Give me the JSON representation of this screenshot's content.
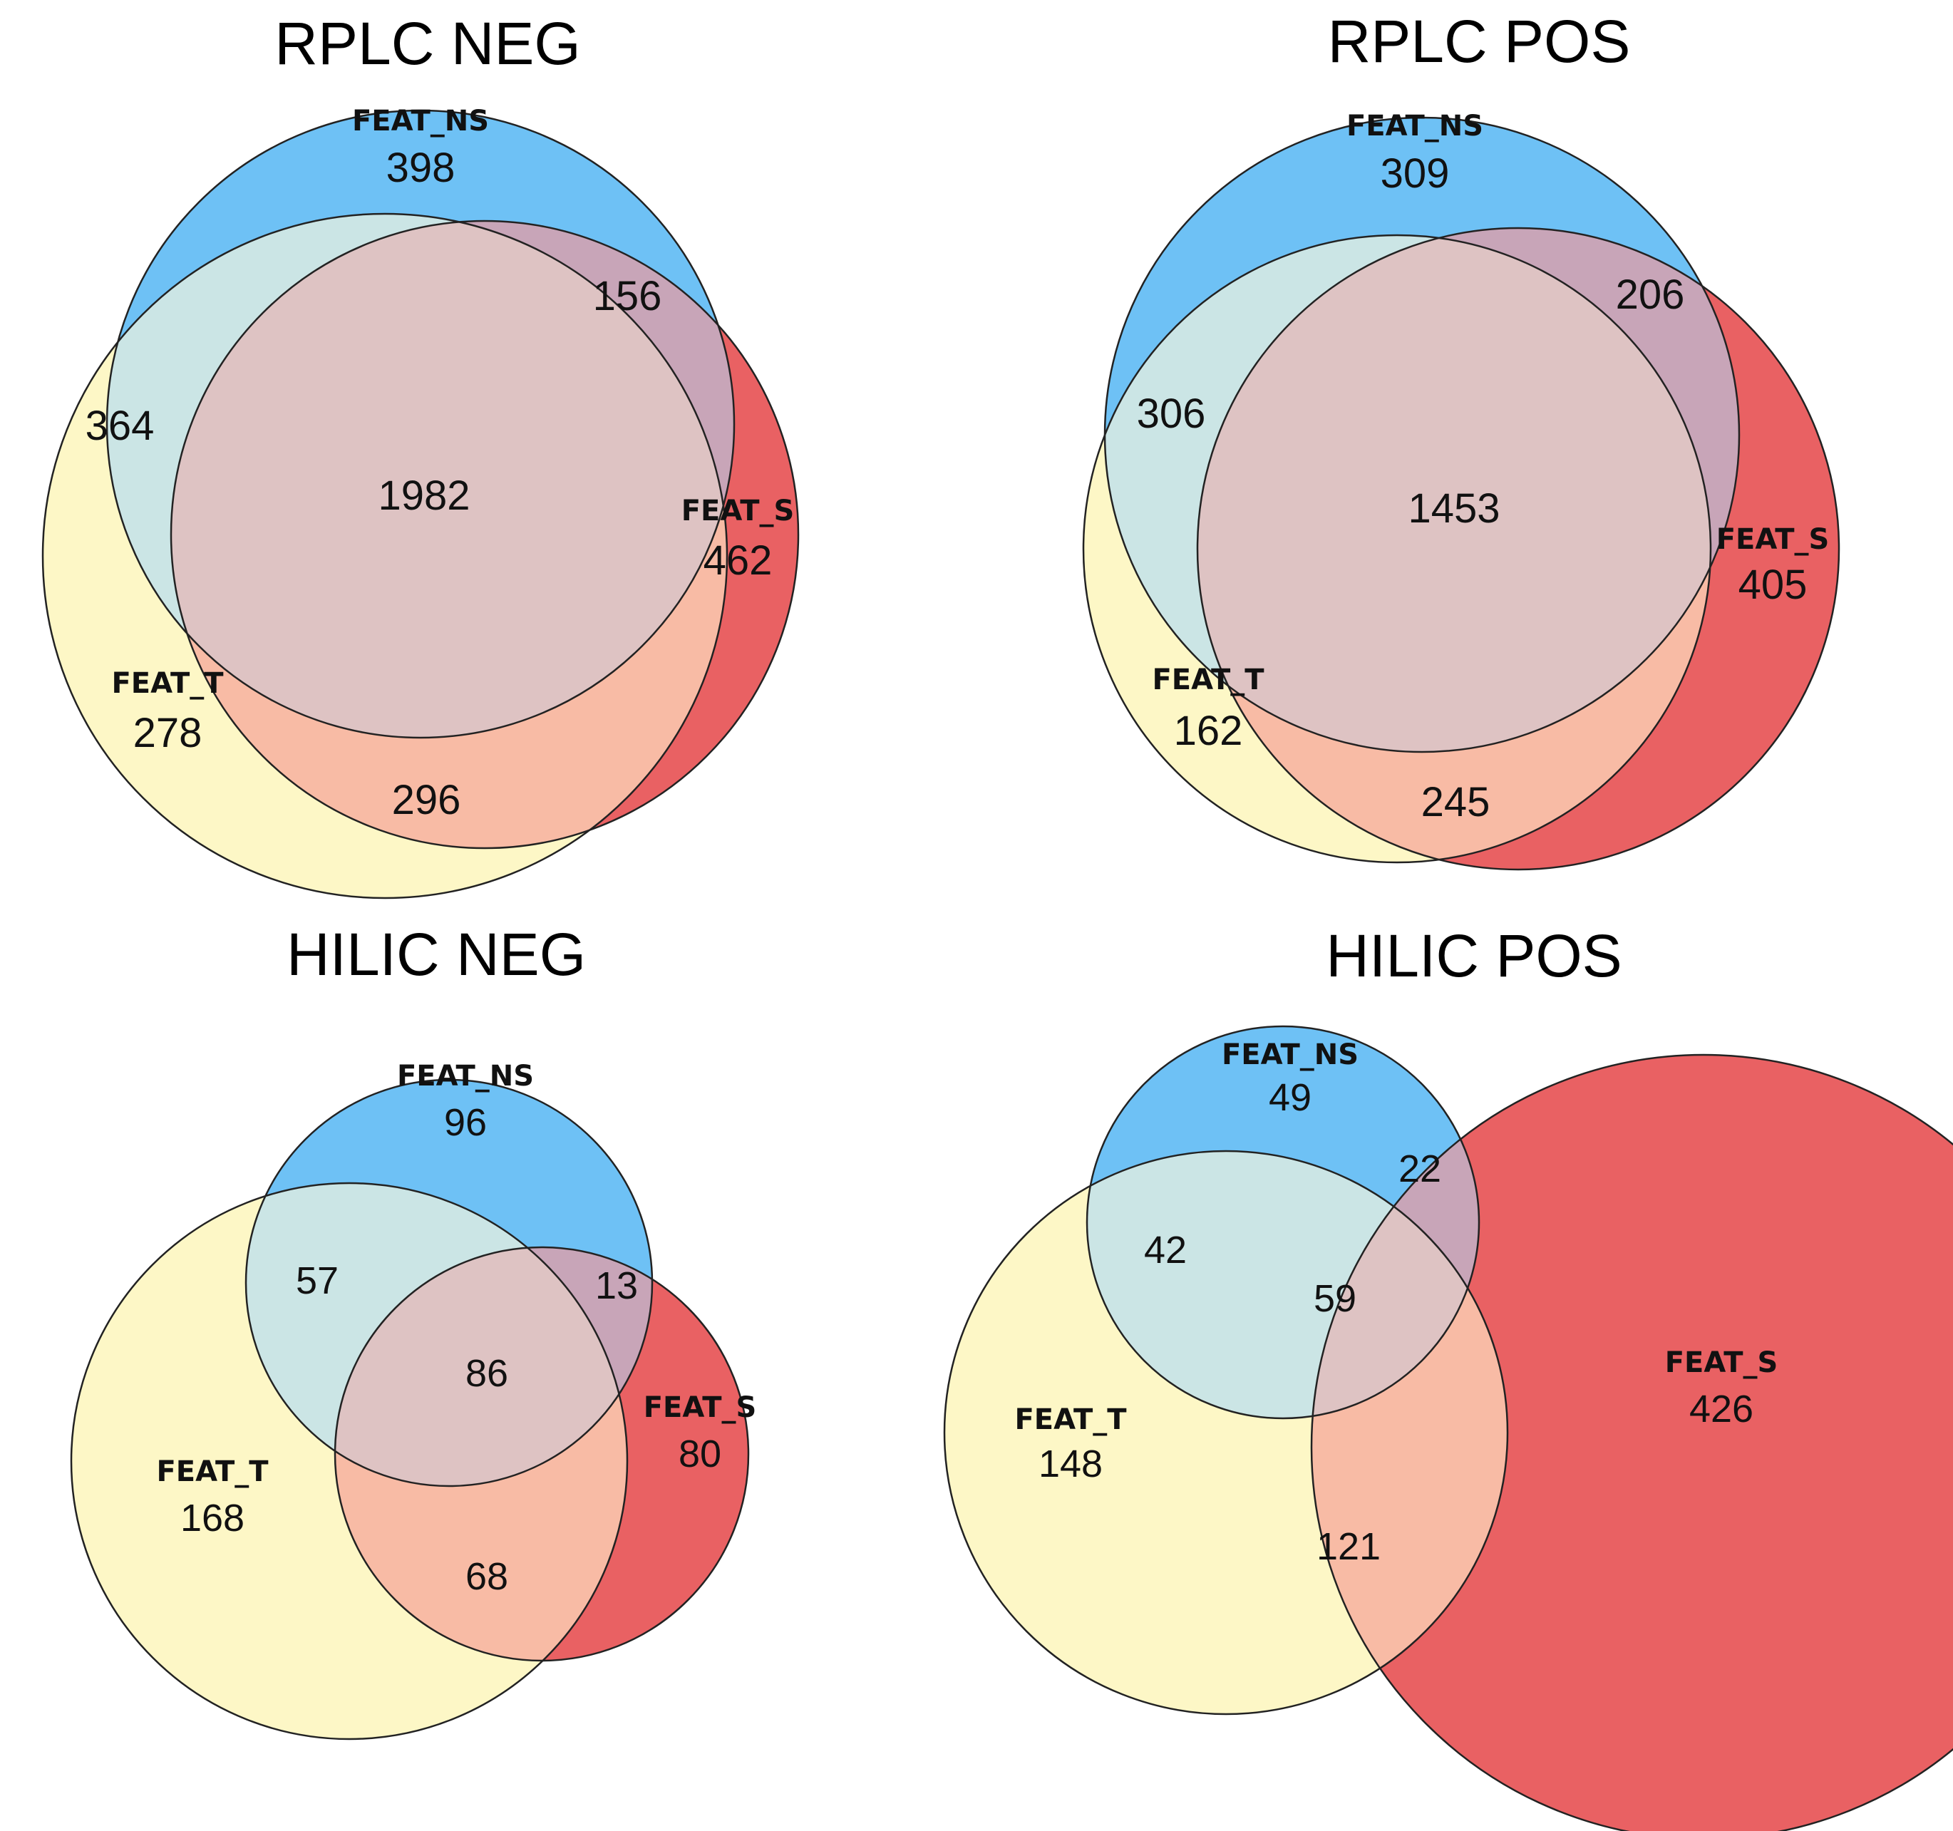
{
  "colors": {
    "ns": "#6ec1f5",
    "s": "#e96163",
    "t": "#fdf7c6",
    "ns_t": "#cbe5e5",
    "ns_s": "#c8a5b8",
    "s_t": "#f8bba5",
    "all": "#dec3c3"
  },
  "panels": [
    {
      "title": "RPLC NEG",
      "sets": {
        "ns": "FEAT_NS",
        "s": "FEAT_S",
        "t": "FEAT_T"
      },
      "counts": {
        "ns_only": "398",
        "s_only": "462",
        "t_only": "278",
        "ns_s": "156",
        "ns_t": "364",
        "s_t": "296",
        "all": "1982"
      }
    },
    {
      "title": "RPLC POS",
      "sets": {
        "ns": "FEAT_NS",
        "s": "FEAT_S",
        "t": "FEAT_T"
      },
      "counts": {
        "ns_only": "309",
        "s_only": "405",
        "t_only": "162",
        "ns_s": "206",
        "ns_t": "306",
        "s_t": "245",
        "all": "1453"
      }
    },
    {
      "title": "HILIC NEG",
      "sets": {
        "ns": "FEAT_NS",
        "s": "FEAT_S",
        "t": "FEAT_T"
      },
      "counts": {
        "ns_only": "96",
        "s_only": "80",
        "t_only": "168",
        "ns_s": "13",
        "ns_t": "57",
        "s_t": "68",
        "all": "86"
      }
    },
    {
      "title": "HILIC POS",
      "sets": {
        "ns": "FEAT_NS",
        "s": "FEAT_S",
        "t": "FEAT_T"
      },
      "counts": {
        "ns_only": "49",
        "s_only": "426",
        "t_only": "148",
        "ns_s": "22",
        "ns_t": "42",
        "s_t": "121",
        "all": "59"
      }
    }
  ]
}
